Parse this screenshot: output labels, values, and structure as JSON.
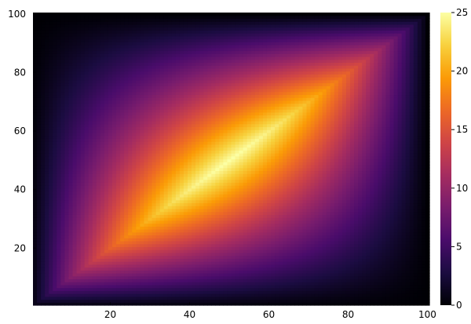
{
  "chart_data": {
    "type": "heatmap",
    "title": "",
    "xlabel": "",
    "ylabel": "",
    "x_range": [
      1,
      100
    ],
    "y_range": [
      1,
      100
    ],
    "xlim": [
      0.5,
      100.5
    ],
    "ylim": [
      0.5,
      100.5
    ],
    "x_ticks": [
      20,
      40,
      60,
      80,
      100
    ],
    "y_ticks": [
      20,
      40,
      60,
      80,
      100
    ],
    "grid": false,
    "function": "z = min(x, y) * (100 - max(x, y)) / 100",
    "z_range": [
      0,
      25
    ],
    "colorbar": {
      "colormap": "inferno",
      "ticks": [
        0,
        5,
        10,
        15,
        20,
        25
      ],
      "tick_labels": [
        "0",
        "5",
        "10",
        "15",
        "20",
        "25"
      ],
      "position": "right"
    },
    "colormap_stops": [
      "#000004",
      "#1b0c41",
      "#4a0c6b",
      "#781c6d",
      "#a52c60",
      "#cf4446",
      "#ed6925",
      "#fb9b06",
      "#f7d13d",
      "#fcffa4"
    ]
  }
}
